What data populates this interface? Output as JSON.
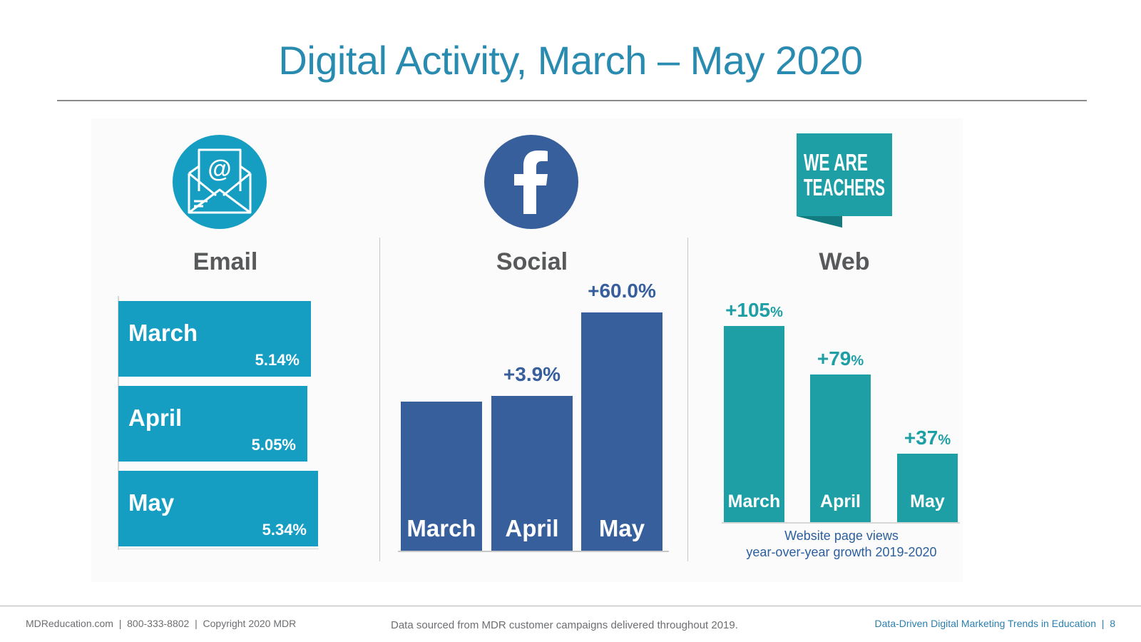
{
  "title": "Digital Activity, March – May 2020",
  "colors": {
    "email": "#159ec2",
    "social": "#375f9c",
    "web": "#1e9fa6",
    "title": "#2a8bb0",
    "text": "#58595b"
  },
  "icons": {
    "email": "envelope-at-icon",
    "social": "facebook-icon",
    "web": "we-are-teachers-logo"
  },
  "logo_text": {
    "line1": "WE ARE",
    "line2": "TEACHERS"
  },
  "chart_data": [
    {
      "type": "bar",
      "orientation": "horizontal",
      "title": "Email",
      "categories": [
        "March",
        "April",
        "May"
      ],
      "values": [
        5.14,
        5.05,
        5.34
      ],
      "value_labels": [
        "5.14%",
        "5.05%",
        "5.34%"
      ],
      "xlim": [
        0,
        5.34
      ]
    },
    {
      "type": "bar",
      "title": "Social",
      "categories": [
        "March",
        "April",
        "May"
      ],
      "values": [
        0,
        3.9,
        60.0
      ],
      "value_labels": [
        "",
        "+3.9%",
        "+60.0%"
      ],
      "relative_height": [
        100,
        103.9,
        160.0
      ]
    },
    {
      "type": "bar",
      "title": "Web",
      "categories": [
        "March",
        "April",
        "May"
      ],
      "values": [
        105,
        79,
        37
      ],
      "value_labels": [
        "+105",
        "+79",
        "+37"
      ],
      "value_suffix": "%",
      "ylim": [
        0,
        105
      ],
      "caption_line1": "Website page views",
      "caption_line2": "year-over-year growth 2019-2020"
    }
  ],
  "footer": {
    "left": "MDReducation.com  |  800-333-8802  |  Copyright 2020 MDR",
    "center": "Data sourced from MDR customer campaigns delivered throughout 2019.",
    "right": "Data-Driven Digital Marketing Trends in Education  |  8"
  }
}
